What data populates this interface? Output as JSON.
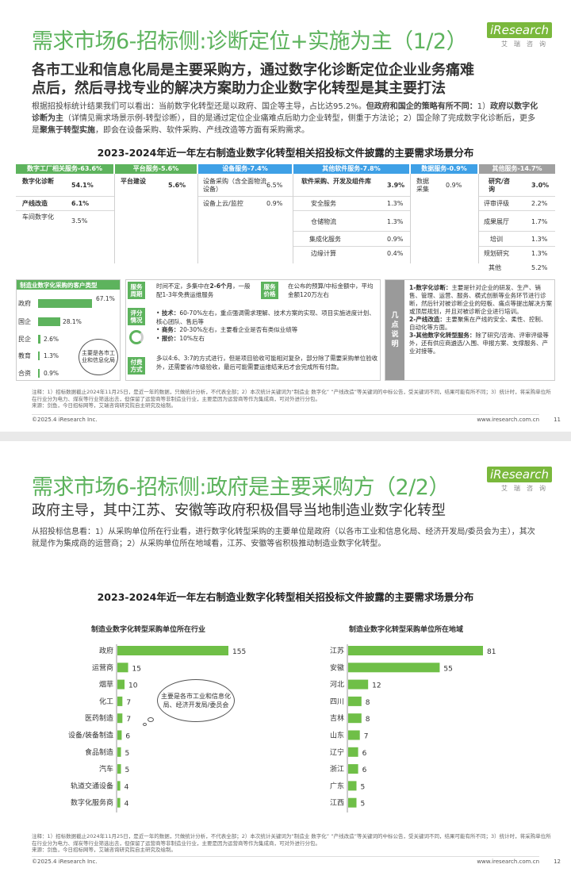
{
  "page1": {
    "title": "需求市场6-招标侧:诊断定位+实施为主（1/2）",
    "logo_brand": "iResearch",
    "logo_sub": "艾瑞咨询",
    "subtitle_line1": "各市工业和信息化局是主要采购方，通过数字化诊断定位企业业务痛难",
    "subtitle_line2": "点后，然后寻找专业的解决方案助力企业数字化转型是其主要打法",
    "intro_a": "根据招投标统计结果我们可以看出：当前数字化转型还是以政府、国企等主导，占比达95.2%。",
    "intro_b": "但政府和国企的策略有所不同：",
    "intro_c": "1）",
    "intro_d": "政府以数字化诊断为主",
    "intro_e": "（详情见需求场景示例-转型诊断），目的是通过定位企业痛难点后助力企业转型，侧重于方法论；2）国企",
    "intro_f": "除了完成数字化诊断后，更多是",
    "intro_g": "聚焦于转型实施",
    "intro_h": "，即会在设备采购、软件采购、产线改造等方面有采购需求。",
    "chart_title": "2023-2024年近一年左右制造业数字化转型相关招投标文件披露的主要需求场景分布",
    "table": {
      "headers": [
        "数字工厂相关服务-63.6%",
        "平台服务-5.6%",
        "设备服务-7.4%",
        "其他软件服务-7.8%",
        "数据服务-0.9%",
        "其他服务-14.7%"
      ],
      "header_colors": [
        "#5db35d",
        "#5db35d",
        "#3ea0e6",
        "#3ea0e6",
        "#3ea0e6",
        "#a0a0a0"
      ],
      "c1": [
        [
          "数字化诊断",
          "54.1%"
        ],
        [
          "产线改造",
          "6.1%"
        ],
        [
          "车间数字化",
          "3.5%"
        ]
      ],
      "c2": [
        [
          "平台建设",
          "5.6%"
        ]
      ],
      "c3": [
        [
          "设备采购（含全面物流设备）",
          "6.5%"
        ],
        [
          "设备上云/监控",
          "0.9%"
        ]
      ],
      "c4": [
        [
          "软件采购、开发及组件库",
          "3.9%"
        ],
        [
          "安全服务",
          "1.3%"
        ],
        [
          "仓储物流",
          "1.3%"
        ],
        [
          "集成化服务",
          "0.9%"
        ],
        [
          "边缘计算",
          "0.4%"
        ]
      ],
      "c5": [
        [
          "数据采集",
          "0.9%"
        ]
      ],
      "c6": [
        [
          "研究/咨询",
          "3.0%"
        ],
        [
          "评审评级",
          "2.2%"
        ],
        [
          "成果展厅",
          "1.7%"
        ],
        [
          "培训",
          "1.3%"
        ],
        [
          "规划研究",
          "1.3%"
        ],
        [
          "其他",
          "5.2%"
        ]
      ]
    },
    "client": {
      "title": "制造业数字化采购的客户类型",
      "bars": [
        {
          "label": "政府",
          "value": 67.1,
          "text": "67.1%"
        },
        {
          "label": "国企",
          "value": 28.1,
          "text": "28.1%"
        },
        {
          "label": "民企",
          "value": 2.6,
          "text": "2.6%"
        },
        {
          "label": "教育",
          "value": 1.3,
          "text": "1.3%"
        },
        {
          "label": "合资",
          "value": 0.9,
          "text": "0.9%"
        }
      ],
      "bubble": "主要是各市工业和信息化局"
    },
    "mid": {
      "service_period_label": "服务周期",
      "service_period_text": "时间不定，多集中在2-6个月，一般配1-3年免费运维服务",
      "service_period_hi": "2-6个月",
      "service_period_pre": "时间不定，多集中在",
      "service_period_post": "，一般配1-3年免费运维服务",
      "service_price_label": "服务价格",
      "service_price_text": "在公布的预算/中标金额中，平均金额120万左右",
      "eval_label": "评分情况",
      "eval_items": [
        [
          "技术：",
          "60-70%左右，重点强调需求理解、技术方案的实现、项目实施进度计划、核心团队、售后等"
        ],
        [
          "商务：",
          "20-30%左右，主要看企业是否有类似业绩等"
        ],
        [
          "报价：",
          "10%左右"
        ]
      ],
      "pay_label": "付费方式",
      "pay_text": "多以4:6、3:7的方式进行，但是项目验收可能相对复杂，部分除了需要采购单位验收外，还需要省/市级验收，最后可能需要运维结束后才会完成所有付款。"
    },
    "right": {
      "label": "几点说明",
      "p1_head": "1-数字化诊断：",
      "p1": "主要是针对企业的研发、生产、销售、管理、运营、服务、横式创新等业务环节进行诊断，然后针对被诊断企业的短板、痛点等提出解决方案或顶层规划，并且对被诊断企业进行培训。",
      "p2_head": "2-产线改造：",
      "p2": "主要聚焦在产线的安全、柔性、控制、自动化等方面。",
      "p3_head": "3-其他数字化转型服务：",
      "p3": "除了研究/咨询、评审评级等外，还有供应商遴选/入围、申报方案、支撑服务、产业对接等。"
    },
    "note": "注释：1）招标数据截止2024年11月25日，是近一年的数据，只做统计分析，不代表全部；2）本次统计关键词为“制造业 数字化” “产线改造”等关键词的中标公告，受关键词不同，结果可能有所不同；3）统计时，将采购单位所在行业分为电力、煤炭等行业筛选出去，但保留了运营商等非制造业行业，主要是因为运营商等作为集成商，可对外进行分包。",
    "source": "来源：剑鱼，今日招标网等，艾瑞咨询研究院自主研究及绘制。",
    "copyright": "©2025.4 iResearch Inc.",
    "url": "www.iresearch.com.cn",
    "page_no": "11"
  },
  "page2": {
    "title": "需求市场6-招标侧:政府是主要采购方（2/2）",
    "subtitle": "政府主导，其中江苏、安徽等政府积极倡导当地制造业数字化转型",
    "intro": "从招投标信息看：1）从采购单位所在行业看，进行数字化转型采购的主要单位是政府（以各市工业和信息化局、经济开发局/委员会为主），其次就是作为集成商的运营商；2）从采购单位所在地域看，江苏、安徽等省积极推动制造业数字化转型。",
    "chart_title": "2023-2024年近一年左右制造业数字化转型相关招投标文件披露的主要需求场景分布",
    "bubble": "主要是各市工业和信息化局、经济开发局/委员会",
    "note": "注释：1）招标数据截止2024年11月25日，是近一年的数据，只做统计分析，不代表全部；2）本次统计关键词为“制造业 数字化” “产线改造”等关键词的中标公告，受关键词不同，结果可能有所不同；3）统计时，将采购单位所在行业分为电力、煤炭等行业筛选出去，但保留了运营商等非制造业行业，主要是因为运营商等作为集成商，可对外进行分包。",
    "source": "来源：剑鱼，今日招标网等，艾瑞咨询研究院自主研究及绘制。",
    "copyright": "©2025.4 iResearch Inc.",
    "url": "www.iresearch.com.cn",
    "page_no": "12"
  },
  "chart_data": [
    {
      "type": "bar",
      "title": "制造业数字化转型采购单位所在行业",
      "categories": [
        "政府",
        "运营商",
        "烟草",
        "化工",
        "医药制造",
        "设备/装备制造",
        "食品制造",
        "汽车",
        "轨道交通设备",
        "数字化服务商"
      ],
      "values": [
        155,
        15,
        10,
        7,
        7,
        6,
        5,
        5,
        4,
        4
      ],
      "color": "#6fbf47"
    },
    {
      "type": "bar",
      "title": "制造业数字化转型采购单位所在地域",
      "categories": [
        "江苏",
        "安徽",
        "河北",
        "四川",
        "吉林",
        "山东",
        "辽宁",
        "浙江",
        "广东",
        "江西"
      ],
      "values": [
        81,
        55,
        12,
        8,
        8,
        7,
        6,
        6,
        5,
        5
      ],
      "color": "#6fbf47"
    }
  ]
}
